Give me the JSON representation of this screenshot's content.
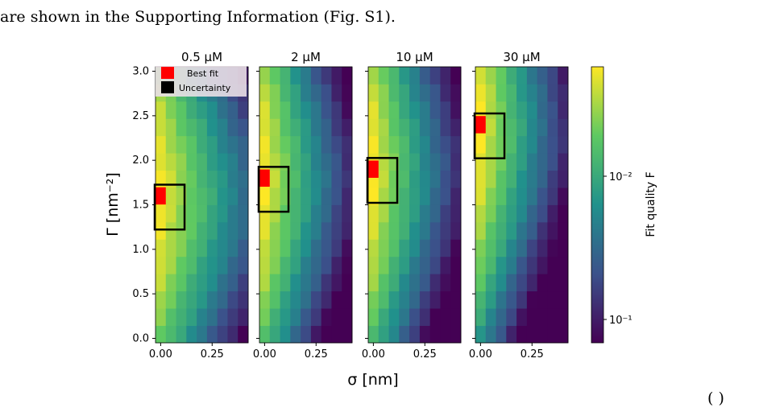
{
  "intro_text": "are shown in the Supporting Information (Fig. S1).",
  "fragment_text": "(     )",
  "legend": {
    "best_fit": "Best fit",
    "uncertainty": "Uncertainty"
  },
  "colors": {
    "best_fit": "#ff0000",
    "uncertainty_outline": "#000000",
    "colormap": "viridis"
  },
  "chart_data": {
    "type": "heatmap",
    "xlabel": "σ  [nm]",
    "ylabel": "Γ  [nm⁻²]",
    "x_ticks": [
      "0.00",
      "0.25"
    ],
    "y_ticks": [
      "0.0",
      "0.5",
      "1.0",
      "1.5",
      "2.0",
      "2.5",
      "3.0"
    ],
    "x_range": [
      -0.025,
      0.425
    ],
    "y_range": [
      -0.05,
      3.05
    ],
    "grid": false,
    "colorbar": {
      "label": "Fit quality  F",
      "scale": "log",
      "inverted": true,
      "tick_labels": [
        "10⁻²",
        "10⁻¹"
      ]
    },
    "panels": [
      {
        "title": "0.5 μM",
        "best_fit": {
          "sigma": 0.0,
          "gamma": 1.6
        }
      },
      {
        "title": "2 μM",
        "best_fit": {
          "sigma": 0.0,
          "gamma": 1.8
        }
      },
      {
        "title": "10 μM",
        "best_fit": {
          "sigma": 0.0,
          "gamma": 1.9
        }
      },
      {
        "title": "30 μM",
        "best_fit": {
          "sigma": 0.0,
          "gamma": 2.4
        }
      }
    ]
  }
}
